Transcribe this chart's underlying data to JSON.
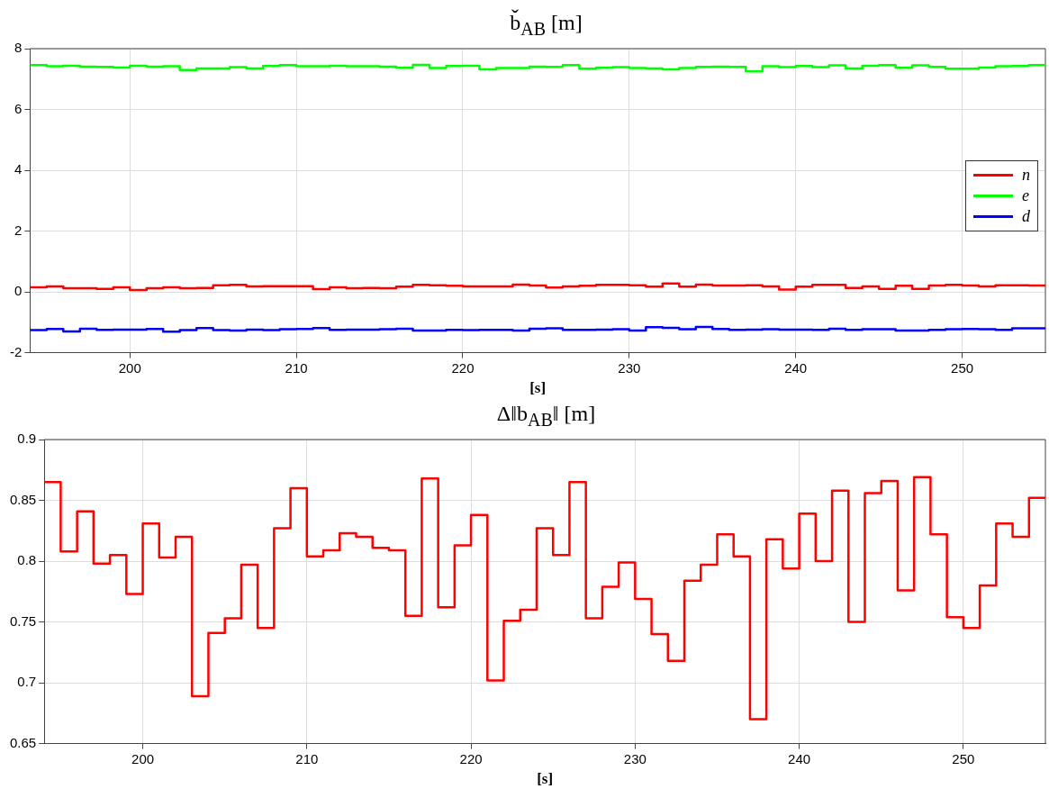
{
  "chart_data": [
    {
      "type": "step",
      "title": "b̌$_{AB}$  [m]",
      "xlabel": "[s]",
      "x": [
        194,
        195,
        196,
        197,
        198,
        199,
        200,
        201,
        202,
        203,
        204,
        205,
        206,
        207,
        208,
        209,
        210,
        211,
        212,
        213,
        214,
        215,
        216,
        217,
        218,
        219,
        220,
        221,
        222,
        223,
        224,
        225,
        226,
        227,
        228,
        229,
        230,
        231,
        232,
        233,
        234,
        235,
        236,
        237,
        238,
        239,
        240,
        241,
        242,
        243,
        244,
        245,
        246,
        247,
        248,
        249,
        250,
        251,
        252,
        253,
        254,
        255
      ],
      "series": [
        {
          "name": "n",
          "color": "#ff0000",
          "values": [
            0.15,
            0.18,
            0.12,
            0.12,
            0.1,
            0.15,
            0.06,
            0.12,
            0.15,
            0.12,
            0.13,
            0.22,
            0.23,
            0.18,
            0.19,
            0.19,
            0.19,
            0.09,
            0.15,
            0.12,
            0.13,
            0.12,
            0.17,
            0.23,
            0.22,
            0.2,
            0.18,
            0.18,
            0.18,
            0.24,
            0.21,
            0.14,
            0.18,
            0.2,
            0.23,
            0.23,
            0.22,
            0.17,
            0.28,
            0.17,
            0.24,
            0.21,
            0.21,
            0.22,
            0.18,
            0.08,
            0.17,
            0.23,
            0.23,
            0.13,
            0.18,
            0.1,
            0.2,
            0.1,
            0.21,
            0.23,
            0.21,
            0.18,
            0.22,
            0.22,
            0.21,
            0.21
          ]
        },
        {
          "name": "e",
          "color": "#00ff00",
          "values": [
            7.46,
            7.42,
            7.44,
            7.41,
            7.4,
            7.38,
            7.44,
            7.41,
            7.42,
            7.3,
            7.35,
            7.35,
            7.39,
            7.35,
            7.43,
            7.46,
            7.42,
            7.42,
            7.44,
            7.42,
            7.42,
            7.41,
            7.37,
            7.47,
            7.36,
            7.43,
            7.44,
            7.32,
            7.36,
            7.36,
            7.41,
            7.4,
            7.46,
            7.34,
            7.37,
            7.39,
            7.36,
            7.35,
            7.32,
            7.36,
            7.4,
            7.41,
            7.4,
            7.25,
            7.42,
            7.39,
            7.43,
            7.39,
            7.45,
            7.35,
            7.44,
            7.46,
            7.37,
            7.45,
            7.4,
            7.34,
            7.34,
            7.38,
            7.42,
            7.43,
            7.46,
            7.46
          ]
        },
        {
          "name": "d",
          "color": "#0000ff",
          "values": [
            -1.26,
            -1.22,
            -1.3,
            -1.21,
            -1.25,
            -1.24,
            -1.24,
            -1.22,
            -1.31,
            -1.26,
            -1.19,
            -1.26,
            -1.27,
            -1.24,
            -1.26,
            -1.23,
            -1.22,
            -1.19,
            -1.25,
            -1.24,
            -1.24,
            -1.23,
            -1.21,
            -1.27,
            -1.27,
            -1.25,
            -1.26,
            -1.25,
            -1.25,
            -1.27,
            -1.21,
            -1.2,
            -1.25,
            -1.25,
            -1.24,
            -1.23,
            -1.27,
            -1.16,
            -1.18,
            -1.23,
            -1.15,
            -1.22,
            -1.25,
            -1.24,
            -1.23,
            -1.24,
            -1.24,
            -1.25,
            -1.21,
            -1.25,
            -1.23,
            -1.23,
            -1.27,
            -1.27,
            -1.25,
            -1.23,
            -1.22,
            -1.23,
            -1.25,
            -1.2,
            -1.2,
            -1.2
          ]
        }
      ],
      "xlim": [
        194,
        255
      ],
      "xticks": [
        200,
        210,
        220,
        230,
        240,
        250
      ],
      "ylim": [
        -2,
        8
      ],
      "yticks": [
        -2,
        0,
        2,
        4,
        6,
        8
      ],
      "grid": true,
      "legend": "right",
      "marker": "none",
      "line_style": "solid"
    },
    {
      "type": "step",
      "title": "Δ‖b$_{AB}$‖  [m]",
      "xlabel": "[s]",
      "x": [
        194,
        195,
        196,
        197,
        198,
        199,
        200,
        201,
        202,
        203,
        204,
        205,
        206,
        207,
        208,
        209,
        210,
        211,
        212,
        213,
        214,
        215,
        216,
        217,
        218,
        219,
        220,
        221,
        222,
        223,
        224,
        225,
        226,
        227,
        228,
        229,
        230,
        231,
        232,
        233,
        234,
        235,
        236,
        237,
        238,
        239,
        240,
        241,
        242,
        243,
        244,
        245,
        246,
        247,
        248,
        249,
        250,
        251,
        252,
        253,
        254,
        255
      ],
      "series": [
        {
          "color": "#ff0000",
          "values": [
            0.865,
            0.808,
            0.841,
            0.798,
            0.805,
            0.773,
            0.831,
            0.803,
            0.82,
            0.689,
            0.741,
            0.753,
            0.797,
            0.745,
            0.827,
            0.86,
            0.804,
            0.809,
            0.823,
            0.82,
            0.811,
            0.809,
            0.755,
            0.868,
            0.762,
            0.813,
            0.838,
            0.702,
            0.751,
            0.76,
            0.827,
            0.805,
            0.865,
            0.753,
            0.779,
            0.799,
            0.769,
            0.74,
            0.718,
            0.784,
            0.797,
            0.822,
            0.804,
            0.67,
            0.818,
            0.794,
            0.839,
            0.8,
            0.858,
            0.75,
            0.856,
            0.866,
            0.776,
            0.869,
            0.822,
            0.754,
            0.745,
            0.78,
            0.831,
            0.82,
            0.852,
            0.852
          ]
        }
      ],
      "xlim": [
        194,
        255
      ],
      "xticks": [
        200,
        210,
        220,
        230,
        240,
        250
      ],
      "ylim": [
        0.65,
        0.9
      ],
      "yticks": [
        0.65,
        0.7,
        0.75,
        0.8,
        0.85,
        0.9
      ],
      "grid": true,
      "marker": "none",
      "line_style": "solid"
    }
  ]
}
